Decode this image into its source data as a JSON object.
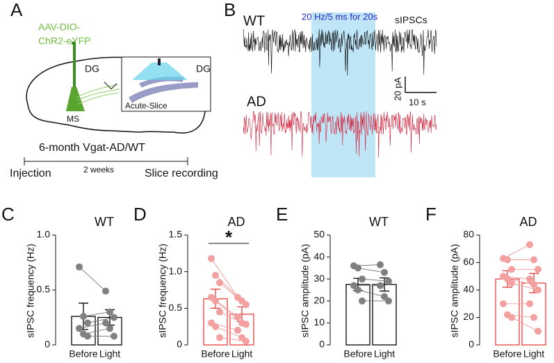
{
  "panels": {
    "a": {
      "label": "A",
      "vector": [
        "AAV-DIO-",
        "ChR2-eYFP"
      ],
      "region": "DG",
      "inset_region": "DG",
      "inset_caption": "Acute-Slice",
      "site": "MS",
      "cohort": "6-month Vgat-AD/WT",
      "interval": "2 weeks",
      "start": "Injection",
      "end": "Slice recording"
    },
    "b": {
      "label": "B",
      "trace_top": "WT",
      "trace_bottom": "AD",
      "stimulus": "20 Hz/5 ms for 20s",
      "measure": "sIPSCs",
      "scale_y": "20 pA",
      "scale_x": "10 s"
    }
  },
  "chart_data": [
    {
      "type": "bar",
      "label": "C",
      "title": "WT",
      "y_label": "sIPSC frequency (Hz)",
      "categories": [
        "Before",
        "Light"
      ],
      "values": [
        0.26,
        0.25
      ],
      "errors": [
        0.12,
        0.07
      ],
      "points": [
        [
          0.71,
          0.26,
          0.2,
          0.15,
          0.1,
          0.08
        ],
        [
          0.49,
          0.3,
          0.25,
          0.2,
          0.15,
          0.08
        ]
      ],
      "ylim": [
        0,
        1.0
      ],
      "yticks": [
        0,
        0.5,
        {
          "value": 1.0,
          "label": "1.0"
        }
      ],
      "color": "#000000",
      "point_color": "#808080"
    },
    {
      "type": "bar",
      "label": "D",
      "title": "AD",
      "y_label": "sIPSC frequency (Hz)",
      "categories": [
        "Before",
        "Light"
      ],
      "values": [
        0.63,
        0.42
      ],
      "errors": [
        0.13,
        0.1
      ],
      "points": [
        [
          1.18,
          0.95,
          0.85,
          0.65,
          0.6,
          0.45,
          0.3,
          0.25,
          0.1
        ],
        [
          0.65,
          0.6,
          0.55,
          0.38,
          0.3,
          0.28,
          0.2,
          0.1,
          0.05
        ]
      ],
      "ylim": [
        0,
        1.5
      ],
      "yticks": [
        0,
        0.5,
        {
          "value": 1.0,
          "label": "1.0"
        },
        1.5
      ],
      "annotation": "*",
      "color": "#e8403f",
      "point_color": "#f4a0a0"
    },
    {
      "type": "bar",
      "label": "E",
      "title": "WT",
      "y_label": "sIPSC amplitude (pA)",
      "categories": [
        "Before",
        "Light"
      ],
      "values": [
        27.5,
        27.5
      ],
      "errors": [
        2.8,
        3
      ],
      "points": [
        [
          36,
          35,
          30,
          27,
          25,
          20
        ],
        [
          36.5,
          33,
          29,
          27,
          22,
          20
        ]
      ],
      "ylim": [
        0,
        50
      ],
      "yticks": [
        0,
        10,
        20,
        30,
        40,
        50
      ],
      "color": "#000000",
      "point_color": "#808080"
    },
    {
      "type": "bar",
      "label": "F",
      "title": "AD",
      "y_label": "sIPSC amplitude (pA)",
      "categories": [
        "Before",
        "Light"
      ],
      "values": [
        48,
        45
      ],
      "errors": [
        6,
        7
      ],
      "points": [
        [
          63,
          62,
          55,
          50,
          48,
          45,
          30,
          22,
          20
        ],
        [
          73,
          62,
          55,
          48,
          44,
          40,
          30,
          20,
          10
        ]
      ],
      "ylim": [
        0,
        80
      ],
      "yticks": [
        0,
        20,
        40,
        60,
        80
      ],
      "color": "#e8403f",
      "point_color": "#f4a0a0"
    }
  ]
}
